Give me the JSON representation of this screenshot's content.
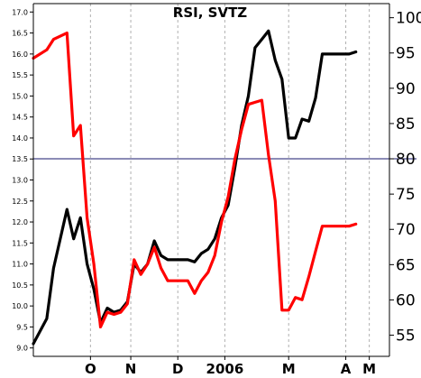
{
  "chart_data": {
    "type": "line",
    "title": "RSI, SVTZ",
    "x_labels": [
      "O",
      "N",
      "D",
      "2006",
      "M",
      "A",
      "M"
    ],
    "x_label_positions": [
      8.5,
      14.5,
      21.5,
      28.5,
      38.0,
      46.5,
      50.0
    ],
    "x_range": [
      0,
      53
    ],
    "left_axis": {
      "ylim": [
        8.8,
        17.2
      ],
      "ticks": [
        "9.0",
        "9.5",
        "10.0",
        "10.5",
        "11.0",
        "11.5",
        "12.0",
        "12.5",
        "13.0",
        "13.5",
        "14.0",
        "14.5",
        "15.0",
        "15.5",
        "16.0",
        "16.5",
        "17.0"
      ],
      "tick_values": [
        9.0,
        9.5,
        10.0,
        10.5,
        11.0,
        11.5,
        12.0,
        12.5,
        13.0,
        13.5,
        14.0,
        14.5,
        15.0,
        15.5,
        16.0,
        16.5,
        17.0
      ]
    },
    "right_axis": {
      "ylim": [
        52,
        102
      ],
      "ticks": [
        "55",
        "60",
        "65",
        "70",
        "75",
        "80",
        "85",
        "90",
        "95",
        "100"
      ],
      "tick_values": [
        55,
        60,
        65,
        70,
        75,
        80,
        85,
        90,
        95,
        100
      ]
    },
    "reference_line": {
      "value": 80,
      "axis": "right",
      "color": "#1a1a6e"
    },
    "vertical_gridlines": [
      8.5,
      14.5,
      21.5,
      28.5,
      38.0,
      46.5,
      50.0
    ],
    "grid": true,
    "series": [
      {
        "axis": "left",
        "color": "#000000",
        "x": [
          0,
          2,
          3,
          5,
          6,
          7,
          8,
          9,
          10,
          11,
          12,
          13,
          14,
          15,
          16,
          17,
          18,
          19,
          20,
          21,
          22,
          23,
          24,
          25,
          26,
          27,
          28,
          29,
          30,
          31,
          32,
          33,
          34,
          35,
          36,
          37,
          38,
          39,
          40,
          41,
          42,
          43,
          44,
          45,
          46,
          47,
          48
        ],
        "values": [
          9.1,
          9.7,
          10.9,
          12.3,
          11.6,
          12.1,
          11.0,
          10.4,
          9.6,
          9.95,
          9.85,
          9.9,
          10.1,
          11.0,
          10.8,
          11.0,
          11.55,
          11.2,
          11.1,
          11.1,
          11.1,
          11.1,
          11.05,
          11.25,
          11.35,
          11.6,
          12.1,
          12.4,
          13.3,
          14.3,
          15.0,
          16.15,
          16.35,
          16.55,
          15.85,
          15.4,
          14.0,
          14.0,
          14.45,
          14.4,
          14.95,
          16.0,
          16.0,
          16.0,
          16.0,
          16.0,
          16.05
        ]
      },
      {
        "axis": "left",
        "color": "#ff0000",
        "x": [
          0,
          2,
          3,
          5,
          6,
          7,
          8,
          9,
          10,
          11,
          12,
          13,
          14,
          15,
          16,
          17,
          18,
          19,
          20,
          21,
          22,
          23,
          24,
          25,
          26,
          27,
          28,
          29,
          30,
          31,
          32,
          33,
          34,
          35,
          36,
          37,
          38,
          39,
          40,
          41,
          42,
          43,
          44,
          45,
          46,
          47,
          48
        ],
        "values": [
          15.9,
          16.1,
          16.35,
          16.5,
          14.05,
          14.3,
          12.1,
          11.0,
          9.5,
          9.85,
          9.8,
          9.85,
          10.05,
          11.1,
          10.75,
          11.0,
          11.4,
          10.9,
          10.6,
          10.6,
          10.6,
          10.6,
          10.3,
          10.6,
          10.8,
          11.2,
          12.0,
          12.6,
          13.5,
          14.2,
          14.8,
          14.85,
          14.9,
          13.6,
          12.5,
          9.9,
          9.9,
          10.2,
          10.15,
          10.7,
          11.3,
          11.9,
          11.9,
          11.9,
          11.9,
          11.9,
          11.95
        ]
      }
    ]
  }
}
